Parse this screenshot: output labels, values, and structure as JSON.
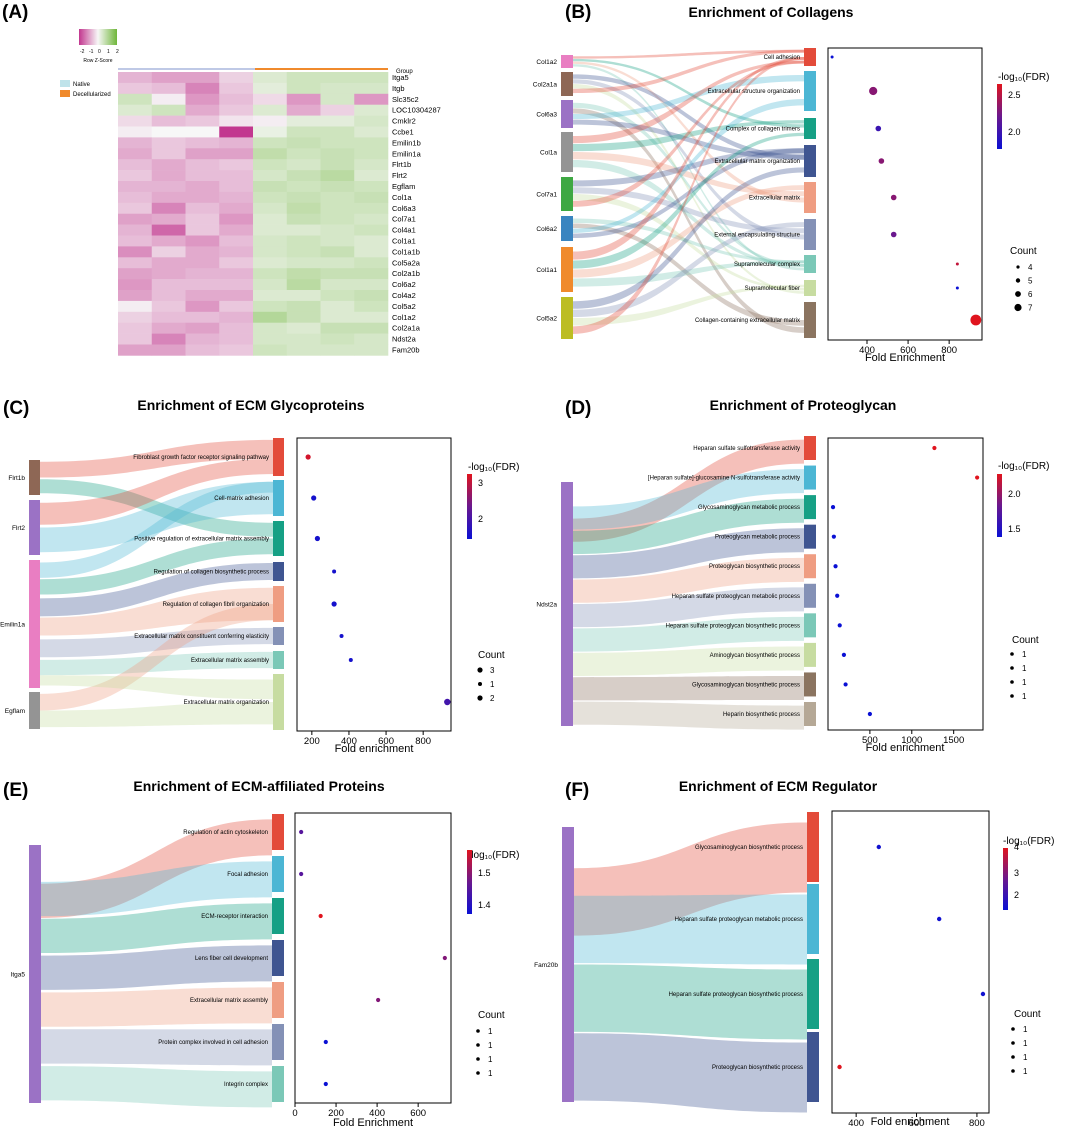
{
  "figure": {
    "panel_a": {
      "letter": "(A)",
      "scale_title": "Row Z-Score",
      "scale_ticks": [
        "-2",
        "-1",
        "0",
        "1",
        "2"
      ],
      "group_label": "Group",
      "legend": [
        {
          "label": "Native",
          "color": "#bfe3ea"
        },
        {
          "label": "Decellularized",
          "color": "#f08a2c"
        }
      ]
    },
    "panel_b": {
      "letter": "(B)",
      "title": "Enrichment of Collagens",
      "xlabel": "Fold Enrichment",
      "cbar_title": "-log₁₀(FDR)",
      "cbar_ticks": [
        "2.5",
        "2.0"
      ],
      "count_title": "Count",
      "count_labels": [
        "4",
        "5",
        "6",
        "7"
      ]
    },
    "panel_c": {
      "letter": "(C)",
      "title": "Enrichment of ECM Glycoproteins",
      "xlabel": "Fold enrichment",
      "cbar_title": "-log₁₀(FDR)",
      "cbar_ticks": [
        "3",
        "2"
      ],
      "count_title": "Count",
      "count_labels": [
        "3",
        "1",
        "2"
      ]
    },
    "panel_d": {
      "letter": "(D)",
      "title": "Enrichment of Proteoglycan",
      "xlabel": "Fold enrichment",
      "cbar_title": "-log₁₀(FDR)",
      "cbar_ticks": [
        "2.0",
        "1.5"
      ],
      "count_title": "Count",
      "count_labels": [
        "1",
        "1",
        "1",
        "1"
      ]
    },
    "panel_e": {
      "letter": "(E)",
      "title": "Enrichment of ECM-affiliated Proteins",
      "xlabel": "Fold Enrichment",
      "cbar_title": "-log₁₀(FDR)",
      "cbar_ticks": [
        "1.5",
        "1.4"
      ],
      "count_title": "Count",
      "count_labels": [
        "1",
        "1",
        "1",
        "1"
      ]
    },
    "panel_f": {
      "letter": "(F)",
      "title": "Enrichment of ECM Regulator",
      "xlabel": "Fold enrichment",
      "cbar_title": "-log₁₀(FDR)",
      "cbar_ticks": [
        "4",
        "3",
        "2"
      ],
      "count_title": "Count",
      "count_labels": [
        "1",
        "1",
        "1",
        "1"
      ]
    }
  },
  "chart_data": [
    {
      "panel": "A",
      "type": "heatmap",
      "title": "",
      "scale_range": [
        -2,
        2
      ],
      "groups": [
        "Native",
        "Native",
        "Native",
        "Native",
        "Decellularized",
        "Decellularized",
        "Decellularized",
        "Decellularized"
      ],
      "rows": [
        "Itga5",
        "Itgb",
        "Slc35c2",
        "LOC10304287",
        "Cmklr2",
        "Ccbe1",
        "Emilin1b",
        "Emilin1a",
        "Flrt1b",
        "Flrt2",
        "Egflam",
        "Col1a",
        "Col6a3",
        "Col7a1",
        "Col4a1",
        "Col1a1",
        "Col1a1b",
        "Col5a2a",
        "Col2a1b",
        "Col6a2",
        "Col4a2",
        "Col5a2",
        "Col1a2",
        "Col2a1a",
        "Ndst2a",
        "Fam20b"
      ],
      "values": [
        [
          -0.7,
          -0.9,
          -0.9,
          -0.4,
          0.4,
          0.6,
          0.6,
          0.6
        ],
        [
          -0.5,
          -0.6,
          -1.2,
          -0.5,
          0.3,
          0.6,
          0.5,
          0.5
        ],
        [
          0.6,
          -0.1,
          -1.0,
          -0.6,
          -0.3,
          -1.0,
          0.5,
          -1.0
        ],
        [
          0.4,
          0.6,
          -0.8,
          -0.5,
          0.4,
          -0.8,
          -0.4,
          0.4
        ],
        [
          -0.3,
          -0.6,
          -0.5,
          -0.2,
          -0.1,
          0.3,
          0.3,
          0.5
        ],
        [
          -0.1,
          0.0,
          0.0,
          -2.0,
          0.2,
          0.6,
          0.6,
          0.4
        ],
        [
          -0.7,
          -0.5,
          -0.6,
          -0.7,
          0.6,
          0.7,
          0.6,
          0.6
        ],
        [
          -0.8,
          -0.5,
          -0.9,
          -0.9,
          0.8,
          0.6,
          0.7,
          0.6
        ],
        [
          -0.6,
          -0.8,
          -0.6,
          -0.5,
          0.6,
          0.5,
          0.7,
          0.5
        ],
        [
          -0.5,
          -0.8,
          -0.6,
          -0.6,
          0.5,
          0.7,
          0.9,
          0.4
        ],
        [
          -0.7,
          -0.7,
          -0.8,
          -0.6,
          0.7,
          0.6,
          0.7,
          0.6
        ],
        [
          -0.6,
          -0.8,
          -0.8,
          -0.7,
          0.6,
          0.7,
          0.6,
          0.7
        ],
        [
          -0.5,
          -1.2,
          -0.6,
          -0.8,
          0.5,
          0.8,
          0.6,
          0.6
        ],
        [
          -0.9,
          -0.8,
          -0.5,
          -1.0,
          0.4,
          0.7,
          0.6,
          0.5
        ],
        [
          -0.7,
          -1.5,
          -0.5,
          -0.8,
          0.4,
          0.4,
          0.5,
          0.6
        ],
        [
          -0.6,
          -0.8,
          -1.0,
          -0.6,
          0.5,
          0.6,
          0.5,
          0.4
        ],
        [
          -1.1,
          -0.4,
          -0.8,
          -0.7,
          0.5,
          0.6,
          0.7,
          0.4
        ],
        [
          -0.6,
          -0.8,
          -0.8,
          -0.5,
          0.4,
          0.5,
          0.5,
          0.6
        ],
        [
          -0.9,
          -0.8,
          -0.7,
          -0.7,
          0.6,
          0.8,
          0.7,
          0.7
        ],
        [
          -1.0,
          -0.6,
          -0.6,
          -0.6,
          0.5,
          0.9,
          0.5,
          0.5
        ],
        [
          -0.9,
          -0.6,
          -0.8,
          -0.8,
          0.4,
          0.4,
          0.6,
          0.7
        ],
        [
          -0.1,
          -0.5,
          -1.0,
          -0.5,
          0.6,
          0.7,
          0.4,
          0.6
        ],
        [
          -0.4,
          -0.6,
          -0.6,
          -0.7,
          1.0,
          0.7,
          0.4,
          0.4
        ],
        [
          -0.5,
          -0.8,
          -0.9,
          -0.6,
          0.5,
          0.4,
          0.7,
          0.7
        ],
        [
          -0.5,
          -1.2,
          -0.7,
          -0.6,
          0.5,
          0.5,
          0.6,
          0.5
        ],
        [
          -0.9,
          -0.9,
          -0.6,
          -0.5,
          0.6,
          0.5,
          0.5,
          0.5
        ]
      ]
    },
    {
      "panel": "B",
      "type": "scatter",
      "title": "Enrichment of Collagens",
      "xlabel": "Fold Enrichment",
      "xlim": [
        210,
        960
      ],
      "xticks": [
        400,
        600,
        800
      ],
      "color_range": [
        1.8,
        2.6
      ],
      "genes": [
        "Col1a2",
        "Col2a1a",
        "Col6a3",
        "Col1a",
        "Col7a1",
        "Col6a2",
        "Col1a1",
        "Col5a2"
      ],
      "terms": [
        "Cell adhesion",
        "Extracellular structure organization",
        "Complex of collagen trimers",
        "Extracellular matrix organization",
        "Extracellular matrix",
        "External encapsulating structure",
        "Supramolecular complex",
        "Supramolecular fiber",
        "Collagen-containing extracellular matrix"
      ],
      "fold_enrichment": [
        230,
        430,
        455,
        470,
        530,
        530,
        840,
        840,
        930
      ],
      "neg_log10_fdr": [
        1.8,
        2.3,
        2.0,
        2.3,
        2.3,
        2.2,
        2.5,
        1.8,
        2.6
      ],
      "count": [
        4,
        6,
        5,
        5,
        5,
        5,
        4,
        4,
        7
      ]
    },
    {
      "panel": "C",
      "type": "scatter",
      "title": "Enrichment of ECM Glycoproteins",
      "xlabel": "Fold enrichment",
      "xlim": [
        120,
        950
      ],
      "xticks": [
        200,
        400,
        600,
        800
      ],
      "color_range": [
        1.5,
        3.2
      ],
      "genes": [
        "Flrt1b",
        "Flrt2",
        "Emilin1a",
        "Egflam"
      ],
      "terms": [
        "Fibroblast growth factor receptor signaling pathway",
        "Cell-matrix adhesion",
        "Positive regulation of extracellular matrix assembly",
        "Regulation of collagen biosynthetic process",
        "Regulation of collagen fibril organization",
        "Extracellular matrix constituent conferring elasticity",
        "Extracellular matrix assembly",
        "Extracellular matrix organization"
      ],
      "fold_enrichment": [
        180,
        210,
        230,
        320,
        320,
        360,
        410,
        930
      ],
      "neg_log10_fdr": [
        3.1,
        1.6,
        1.6,
        1.6,
        1.6,
        1.6,
        1.6,
        2.0
      ],
      "count": [
        2,
        2,
        2,
        1,
        2,
        1,
        1,
        3
      ]
    },
    {
      "panel": "D",
      "type": "scatter",
      "title": "Enrichment of Proteoglycan",
      "xlabel": "Fold enrichment",
      "xlim": [
        0,
        1850
      ],
      "xticks": [
        500,
        1000,
        1500
      ],
      "color_range": [
        1.3,
        2.4
      ],
      "genes": [
        "Ndst2a"
      ],
      "terms": [
        "Heparan sulfate sulfotransferase activity",
        "[Heparan sulfate]-glucosamine N-sulfotransferase activity",
        "Glycosaminoglycan metabolic process",
        "Proteoglycan metabolic process",
        "Proteoglycan biosynthetic process",
        "Heparan sulfate proteoglycan metabolic process",
        "Heparan sulfate proteoglycan biosynthetic process",
        "Aminoglycan biosynthetic process",
        "Glycosaminoglycan biosynthetic process",
        "Heparin biosynthetic process"
      ],
      "fold_enrichment": [
        1270,
        1780,
        60,
        70,
        90,
        110,
        140,
        190,
        210,
        500
      ],
      "neg_log10_fdr": [
        2.4,
        2.4,
        1.3,
        1.3,
        1.3,
        1.3,
        1.3,
        1.3,
        1.3,
        1.3
      ],
      "count": [
        1,
        1,
        1,
        1,
        1,
        1,
        1,
        1,
        1,
        1
      ]
    },
    {
      "panel": "E",
      "type": "scatter",
      "title": "Enrichment of ECM-affiliated Proteins",
      "xlabel": "Fold Enrichment",
      "xlim": [
        0,
        760
      ],
      "xticks": [
        0,
        200,
        400,
        600
      ],
      "color_range": [
        1.35,
        1.6
      ],
      "genes": [
        "Itga5"
      ],
      "terms": [
        "Regulation of actin cytoskeleton",
        "Focal adhesion",
        "ECM-receptor interaction",
        "Lens fiber cell development",
        "Extracellular matrix assembly",
        "Protein complex involved in cell adhesion",
        "Integrin complex"
      ],
      "fold_enrichment": [
        30,
        30,
        125,
        730,
        405,
        150,
        150
      ],
      "neg_log10_fdr": [
        1.45,
        1.45,
        1.6,
        1.5,
        1.5,
        1.35,
        1.35
      ],
      "count": [
        1,
        1,
        1,
        1,
        1,
        1,
        1
      ]
    },
    {
      "panel": "F",
      "type": "scatter",
      "title": "Enrichment of ECM Regulator",
      "xlabel": "Fold enrichment",
      "xlim": [
        320,
        840
      ],
      "xticks": [
        400,
        600,
        800
      ],
      "color_range": [
        1.5,
        4.2
      ],
      "genes": [
        "Fam20b"
      ],
      "terms": [
        "Glycosaminoglycan biosynthetic process",
        "Heparan sulfate proteoglycan metabolic process",
        "Heparan sulfate proteoglycan biosynthetic process",
        "Proteoglycan biosynthetic process"
      ],
      "fold_enrichment": [
        475,
        675,
        820,
        345
      ],
      "neg_log10_fdr": [
        1.6,
        1.6,
        1.6,
        4.2
      ],
      "count": [
        1,
        1,
        1,
        1
      ]
    }
  ]
}
